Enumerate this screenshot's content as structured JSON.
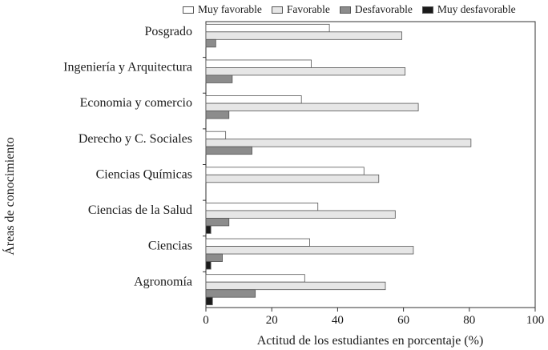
{
  "chart_data": {
    "type": "bar",
    "orientation": "horizontal",
    "title": "",
    "xlabel": "Actitud de los estudiantes en porcentaje (%)",
    "ylabel": "Áreas de conocimiento",
    "xlim": [
      0,
      100
    ],
    "xticks": [
      0,
      20,
      40,
      60,
      80,
      100
    ],
    "legend_position": "top",
    "categories": [
      "Posgrado",
      "Ingeniería y Arquitectura",
      "Economia y comercio",
      "Derecho y C. Sociales",
      "Ciencias Químicas",
      "Ciencias de la Salud",
      "Ciencias",
      "Agronomía"
    ],
    "series": [
      {
        "name": "Muy favorable",
        "color": "#ffffff",
        "values": [
          37.5,
          32,
          29,
          6,
          48,
          34,
          31.5,
          30
        ]
      },
      {
        "name": "Favorable",
        "color": "#e6e6e6",
        "values": [
          59.5,
          60.5,
          64.5,
          80.5,
          52.5,
          57.5,
          63,
          54.5
        ]
      },
      {
        "name": "Desfavorable",
        "color": "#8c8c8c",
        "values": [
          3,
          8,
          7,
          14,
          0,
          7,
          5,
          15
        ]
      },
      {
        "name": "Muy desfavorable",
        "color": "#1a1a1a",
        "values": [
          0,
          0,
          0,
          0,
          0,
          1.5,
          1.5,
          2
        ]
      }
    ]
  }
}
